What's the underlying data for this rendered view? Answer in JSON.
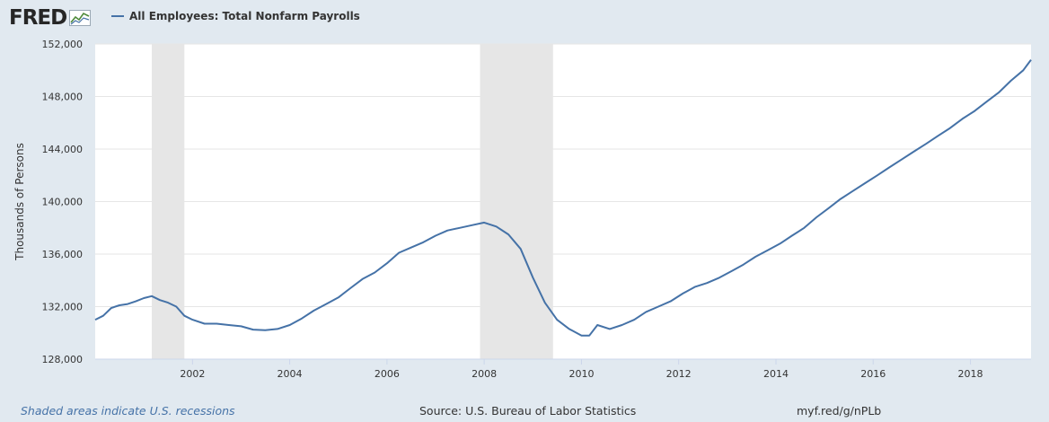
{
  "header": {
    "logo_text": "FRED",
    "logo_icon": "line-chart-icon"
  },
  "chart_data": {
    "type": "line",
    "ylabel": "Thousands of Persons",
    "xlim": [
      "2000-01-01",
      "2019-04-01"
    ],
    "ylim": [
      128000,
      152000
    ],
    "yticks": [
      128000,
      132000,
      136000,
      140000,
      144000,
      148000,
      152000
    ],
    "ytick_labels": [
      "128,000",
      "132,000",
      "136,000",
      "140,000",
      "144,000",
      "148,000",
      "152,000"
    ],
    "xticks": [
      "2002-01-01",
      "2004-01-01",
      "2006-01-01",
      "2008-01-01",
      "2010-01-01",
      "2012-01-01",
      "2014-01-01",
      "2016-01-01",
      "2018-01-01"
    ],
    "xtick_labels": [
      "2002",
      "2004",
      "2006",
      "2008",
      "2010",
      "2012",
      "2014",
      "2016",
      "2018"
    ],
    "grid": true,
    "legend": "top-left",
    "recessions": [
      {
        "start": "2001-03-01",
        "end": "2001-11-01"
      },
      {
        "start": "2007-12-01",
        "end": "2009-06-01"
      }
    ],
    "series": [
      {
        "name": "All Employees: Total Nonfarm Payrolls",
        "color": "#4572a7",
        "points": [
          [
            "2000-01-01",
            131000
          ],
          [
            "2000-03-01",
            131300
          ],
          [
            "2000-05-01",
            131900
          ],
          [
            "2000-07-01",
            132100
          ],
          [
            "2000-09-01",
            132200
          ],
          [
            "2000-11-01",
            132400
          ],
          [
            "2001-01-01",
            132650
          ],
          [
            "2001-03-01",
            132800
          ],
          [
            "2001-05-01",
            132500
          ],
          [
            "2001-07-01",
            132300
          ],
          [
            "2001-09-01",
            132000
          ],
          [
            "2001-11-01",
            131300
          ],
          [
            "2002-01-01",
            131000
          ],
          [
            "2002-04-01",
            130700
          ],
          [
            "2002-07-01",
            130700
          ],
          [
            "2002-10-01",
            130600
          ],
          [
            "2003-01-01",
            130500
          ],
          [
            "2003-04-01",
            130250
          ],
          [
            "2003-07-01",
            130200
          ],
          [
            "2003-10-01",
            130300
          ],
          [
            "2004-01-01",
            130600
          ],
          [
            "2004-04-01",
            131100
          ],
          [
            "2004-07-01",
            131700
          ],
          [
            "2004-10-01",
            132200
          ],
          [
            "2005-01-01",
            132700
          ],
          [
            "2005-04-01",
            133400
          ],
          [
            "2005-07-01",
            134100
          ],
          [
            "2005-10-01",
            134600
          ],
          [
            "2006-01-01",
            135300
          ],
          [
            "2006-04-01",
            136100
          ],
          [
            "2006-07-01",
            136500
          ],
          [
            "2006-10-01",
            136900
          ],
          [
            "2007-01-01",
            137400
          ],
          [
            "2007-04-01",
            137800
          ],
          [
            "2007-07-01",
            138000
          ],
          [
            "2007-10-01",
            138200
          ],
          [
            "2008-01-01",
            138400
          ],
          [
            "2008-04-01",
            138100
          ],
          [
            "2008-07-01",
            137500
          ],
          [
            "2008-10-01",
            136400
          ],
          [
            "2009-01-01",
            134200
          ],
          [
            "2009-04-01",
            132300
          ],
          [
            "2009-07-01",
            131000
          ],
          [
            "2009-10-01",
            130300
          ],
          [
            "2010-01-01",
            129800
          ],
          [
            "2010-03-01",
            129800
          ],
          [
            "2010-05-01",
            130600
          ],
          [
            "2010-08-01",
            130300
          ],
          [
            "2010-11-01",
            130600
          ],
          [
            "2011-02-01",
            131000
          ],
          [
            "2011-05-01",
            131600
          ],
          [
            "2011-08-01",
            132000
          ],
          [
            "2011-11-01",
            132400
          ],
          [
            "2012-02-01",
            133000
          ],
          [
            "2012-05-01",
            133500
          ],
          [
            "2012-08-01",
            133800
          ],
          [
            "2012-11-01",
            134200
          ],
          [
            "2013-02-01",
            134700
          ],
          [
            "2013-05-01",
            135200
          ],
          [
            "2013-08-01",
            135800
          ],
          [
            "2013-11-01",
            136300
          ],
          [
            "2014-02-01",
            136800
          ],
          [
            "2014-05-01",
            137400
          ],
          [
            "2014-08-01",
            138000
          ],
          [
            "2014-11-01",
            138800
          ],
          [
            "2015-02-01",
            139500
          ],
          [
            "2015-05-01",
            140200
          ],
          [
            "2015-08-01",
            140800
          ],
          [
            "2015-11-01",
            141400
          ],
          [
            "2016-02-01",
            142000
          ],
          [
            "2016-05-01",
            142600
          ],
          [
            "2016-08-01",
            143200
          ],
          [
            "2016-11-01",
            143800
          ],
          [
            "2017-02-01",
            144400
          ],
          [
            "2017-05-01",
            145000
          ],
          [
            "2017-08-01",
            145600
          ],
          [
            "2017-11-01",
            146300
          ],
          [
            "2018-02-01",
            146900
          ],
          [
            "2018-05-01",
            147600
          ],
          [
            "2018-08-01",
            148300
          ],
          [
            "2018-11-01",
            149200
          ],
          [
            "2019-02-01",
            150000
          ],
          [
            "2019-04-01",
            150800
          ]
        ]
      }
    ]
  },
  "footer": {
    "note": "Shaded areas indicate U.S. recessions",
    "source": "Source: U.S. Bureau of Labor Statistics",
    "link": "myf.red/g/nPLb"
  }
}
